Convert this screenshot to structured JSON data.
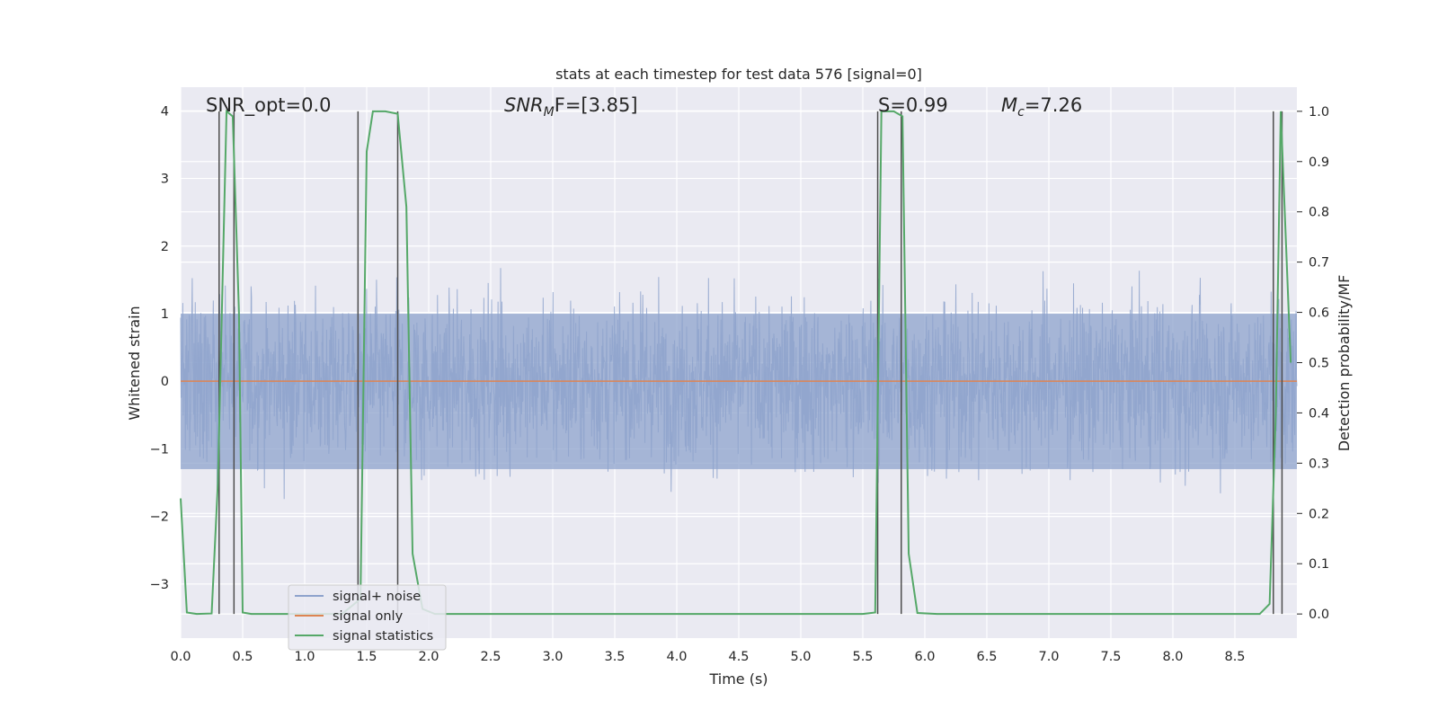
{
  "chart_data": {
    "type": "line",
    "title": "stats at each timestep for test data 576 [signal=0]",
    "xlabel": "Time (s)",
    "ylabel": "Whitened strain",
    "y2label": "Detection probability/MF",
    "xlim": [
      0.0,
      9.0
    ],
    "ylim": [
      -3.8,
      4.35
    ],
    "y2lim": [
      -0.048,
      1.048
    ],
    "xticks": [
      "0.0",
      "0.5",
      "1.0",
      "1.5",
      "2.0",
      "2.5",
      "3.0",
      "3.5",
      "4.0",
      "4.5",
      "5.0",
      "5.5",
      "6.0",
      "6.5",
      "7.0",
      "7.5",
      "8.0",
      "8.5"
    ],
    "yticks": [
      "4",
      "3",
      "2",
      "1",
      "0",
      "−1",
      "−2",
      "−3"
    ],
    "y2ticks": [
      "1.0",
      "0.9",
      "0.8",
      "0.7",
      "0.6",
      "0.5",
      "0.4",
      "0.3",
      "0.2",
      "0.1",
      "0.0"
    ],
    "annotations": {
      "snr_opt": "SNR_opt=0.0",
      "snr_mf_prefix": "SNR",
      "snr_mf_sub": "M",
      "snr_mf_suffix": "F=[3.85]",
      "s_value": "S=0.99",
      "mc_prefix": "M",
      "mc_sub": "c",
      "mc_suffix": "=7.26"
    },
    "noise_envelope": {
      "description_free": true,
      "typical_upper": 1.0,
      "typical_lower": -1.3,
      "max": 4.0,
      "min": -3.6
    },
    "series": [
      {
        "name": "signal+ noise",
        "color": "#8ea3cc"
      },
      {
        "name": "signal only",
        "color": "#dd8452",
        "x": [
          0.0,
          9.0
        ],
        "y": [
          0.0,
          0.0
        ]
      },
      {
        "name": "signal statistics",
        "color": "#55a868",
        "axis": "right",
        "x": [
          0.0,
          0.05,
          0.13,
          0.25,
          0.3,
          0.37,
          0.42,
          0.47,
          0.5,
          0.57,
          0.7,
          1.0,
          1.3,
          1.45,
          1.5,
          1.55,
          1.65,
          1.75,
          1.82,
          1.87,
          1.95,
          2.05,
          3.0,
          4.0,
          5.0,
          5.5,
          5.6,
          5.65,
          5.75,
          5.82,
          5.87,
          5.94,
          6.1,
          6.2,
          7.0,
          8.0,
          8.7,
          8.78,
          8.83,
          8.87,
          8.95
        ],
        "y": [
          0.23,
          0.003,
          0.0,
          0.001,
          0.26,
          1.0,
          0.99,
          0.6,
          0.003,
          0.0,
          0.0,
          0.0,
          0.0,
          0.03,
          0.92,
          1.0,
          1.0,
          0.995,
          0.81,
          0.12,
          0.01,
          0.0,
          0.0,
          0.0,
          0.0,
          0.0,
          0.003,
          1.0,
          1.0,
          0.99,
          0.12,
          0.002,
          0.0,
          0.0,
          0.0,
          0.0,
          0.0,
          0.02,
          0.4,
          1.0,
          0.5
        ]
      }
    ],
    "vlines": [
      0.31,
      0.43,
      1.43,
      1.75,
      5.62,
      5.81,
      8.81,
      8.88
    ],
    "legend": {
      "placement": "lower-left",
      "labels": [
        "signal+ noise",
        "signal only",
        "signal statistics"
      ]
    },
    "grid": true,
    "colors": {
      "plot_bg": "#eaeaf2",
      "grid": "#ffffff",
      "vline": "#4d4d4d"
    }
  }
}
